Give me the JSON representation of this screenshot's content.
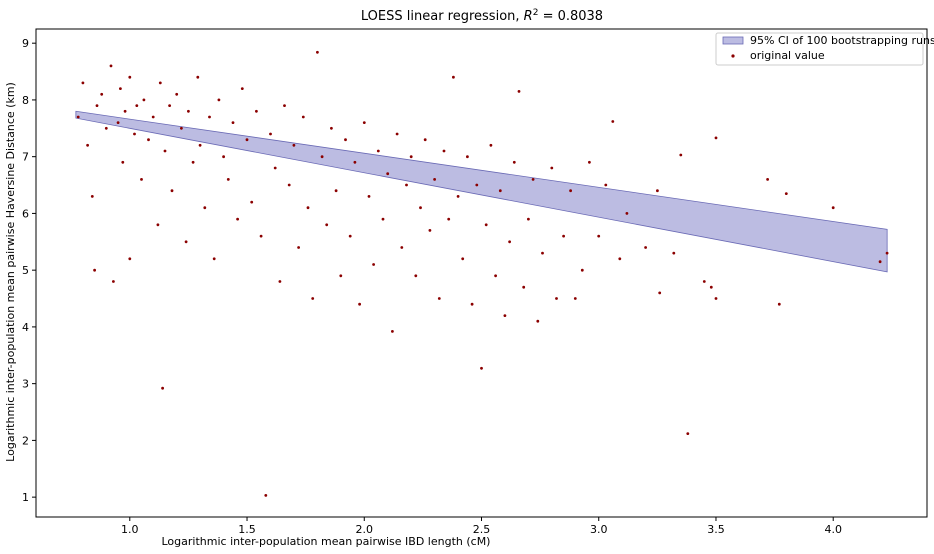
{
  "chart_data": {
    "type": "scatter",
    "title": "LOESS linear regression, R² = 0.8038",
    "title_parts": {
      "main": "LOESS linear regression, ",
      "r": "R",
      "sup": "2",
      "eq": " = 0.8038"
    },
    "xlabel": "Logarithmic inter-population mean pairwise IBD length (cM)",
    "ylabel": "Logarithmic inter-population mean pairwise Haversine Distance (km)",
    "xlim": [
      0.6,
      4.4
    ],
    "ylim": [
      0.65,
      9.25
    ],
    "xticks": [
      "1.0",
      "1.5",
      "2.0",
      "2.5",
      "3.0",
      "3.5",
      "4.0"
    ],
    "xtick_values": [
      1.0,
      1.5,
      2.0,
      2.5,
      3.0,
      3.5,
      4.0
    ],
    "yticks": [
      "1",
      "2",
      "3",
      "4",
      "5",
      "6",
      "7",
      "8",
      "9"
    ],
    "ytick_values": [
      1,
      2,
      3,
      4,
      5,
      6,
      7,
      8,
      9
    ],
    "grid": false,
    "legend_position": "top-right",
    "colors": {
      "points": "#8b0000",
      "band_fill": "#8f8fcf",
      "band_edge": "#6a6ab5"
    },
    "series": [
      {
        "name": "95% CI of 100 bootstrapping runs",
        "kind": "band",
        "x": [
          0.77,
          4.23
        ],
        "lower": [
          7.68,
          4.97
        ],
        "upper": [
          7.8,
          5.72
        ]
      },
      {
        "name": "original value",
        "kind": "scatter",
        "points": [
          [
            0.78,
            7.7
          ],
          [
            0.8,
            8.3
          ],
          [
            0.82,
            7.2
          ],
          [
            0.84,
            6.3
          ],
          [
            0.85,
            5.0
          ],
          [
            0.86,
            7.9
          ],
          [
            0.88,
            8.1
          ],
          [
            0.9,
            7.5
          ],
          [
            0.92,
            8.6
          ],
          [
            0.93,
            4.8
          ],
          [
            0.95,
            7.6
          ],
          [
            0.96,
            8.2
          ],
          [
            0.97,
            6.9
          ],
          [
            0.98,
            7.8
          ],
          [
            1.0,
            8.4
          ],
          [
            1.0,
            5.2
          ],
          [
            1.02,
            7.4
          ],
          [
            1.03,
            7.9
          ],
          [
            1.05,
            6.6
          ],
          [
            1.06,
            8.0
          ],
          [
            1.08,
            7.3
          ],
          [
            1.1,
            7.7
          ],
          [
            1.12,
            5.8
          ],
          [
            1.13,
            8.3
          ],
          [
            1.14,
            2.92
          ],
          [
            1.15,
            7.1
          ],
          [
            1.17,
            7.9
          ],
          [
            1.18,
            6.4
          ],
          [
            1.2,
            8.1
          ],
          [
            1.22,
            7.5
          ],
          [
            1.24,
            5.5
          ],
          [
            1.25,
            7.8
          ],
          [
            1.27,
            6.9
          ],
          [
            1.29,
            8.4
          ],
          [
            1.3,
            7.2
          ],
          [
            1.32,
            6.1
          ],
          [
            1.34,
            7.7
          ],
          [
            1.36,
            5.2
          ],
          [
            1.38,
            8.0
          ],
          [
            1.4,
            7.0
          ],
          [
            1.42,
            6.6
          ],
          [
            1.44,
            7.6
          ],
          [
            1.46,
            5.9
          ],
          [
            1.48,
            8.2
          ],
          [
            1.5,
            7.3
          ],
          [
            1.52,
            6.2
          ],
          [
            1.54,
            7.8
          ],
          [
            1.56,
            5.6
          ],
          [
            1.58,
            1.03
          ],
          [
            1.6,
            7.4
          ],
          [
            1.62,
            6.8
          ],
          [
            1.64,
            4.8
          ],
          [
            1.66,
            7.9
          ],
          [
            1.68,
            6.5
          ],
          [
            1.7,
            7.2
          ],
          [
            1.72,
            5.4
          ],
          [
            1.74,
            7.7
          ],
          [
            1.76,
            6.1
          ],
          [
            1.78,
            4.5
          ],
          [
            1.8,
            8.84
          ],
          [
            1.82,
            7.0
          ],
          [
            1.84,
            5.8
          ],
          [
            1.86,
            7.5
          ],
          [
            1.88,
            6.4
          ],
          [
            1.9,
            4.9
          ],
          [
            1.92,
            7.3
          ],
          [
            1.94,
            5.6
          ],
          [
            1.96,
            6.9
          ],
          [
            1.98,
            4.4
          ],
          [
            2.0,
            7.6
          ],
          [
            2.02,
            6.3
          ],
          [
            2.04,
            5.1
          ],
          [
            2.06,
            7.1
          ],
          [
            2.08,
            5.9
          ],
          [
            2.1,
            6.7
          ],
          [
            2.12,
            3.92
          ],
          [
            2.14,
            7.4
          ],
          [
            2.16,
            5.4
          ],
          [
            2.18,
            6.5
          ],
          [
            2.2,
            7.0
          ],
          [
            2.22,
            4.9
          ],
          [
            2.24,
            6.1
          ],
          [
            2.26,
            7.3
          ],
          [
            2.28,
            5.7
          ],
          [
            2.3,
            6.6
          ],
          [
            2.32,
            4.5
          ],
          [
            2.34,
            7.1
          ],
          [
            2.36,
            5.9
          ],
          [
            2.38,
            8.4
          ],
          [
            2.4,
            6.3
          ],
          [
            2.42,
            5.2
          ],
          [
            2.44,
            7.0
          ],
          [
            2.46,
            4.4
          ],
          [
            2.48,
            6.5
          ],
          [
            2.5,
            3.27
          ],
          [
            2.52,
            5.8
          ],
          [
            2.54,
            7.2
          ],
          [
            2.56,
            4.9
          ],
          [
            2.58,
            6.4
          ],
          [
            2.6,
            4.2
          ],
          [
            2.62,
            5.5
          ],
          [
            2.64,
            6.9
          ],
          [
            2.66,
            8.15
          ],
          [
            2.68,
            4.7
          ],
          [
            2.7,
            5.9
          ],
          [
            2.72,
            6.6
          ],
          [
            2.74,
            4.1
          ],
          [
            2.76,
            5.3
          ],
          [
            2.8,
            6.8
          ],
          [
            2.82,
            4.5
          ],
          [
            2.85,
            5.6
          ],
          [
            2.88,
            6.4
          ],
          [
            2.9,
            4.5
          ],
          [
            2.93,
            5.0
          ],
          [
            2.96,
            6.9
          ],
          [
            3.0,
            5.6
          ],
          [
            3.03,
            6.5
          ],
          [
            3.06,
            7.62
          ],
          [
            3.09,
            5.2
          ],
          [
            3.12,
            6.0
          ],
          [
            3.2,
            5.4
          ],
          [
            3.25,
            6.4
          ],
          [
            3.26,
            4.6
          ],
          [
            3.32,
            5.3
          ],
          [
            3.35,
            7.03
          ],
          [
            3.38,
            2.12
          ],
          [
            3.45,
            4.8
          ],
          [
            3.48,
            4.7
          ],
          [
            3.5,
            7.33
          ],
          [
            3.5,
            4.5
          ],
          [
            3.72,
            6.6
          ],
          [
            3.77,
            4.4
          ],
          [
            3.8,
            6.35
          ],
          [
            4.0,
            6.1
          ],
          [
            4.2,
            5.15
          ],
          [
            4.23,
            5.3
          ]
        ]
      }
    ]
  }
}
